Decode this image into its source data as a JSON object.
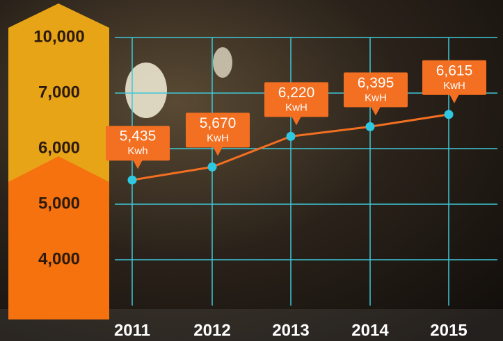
{
  "chart_data": {
    "type": "line",
    "categories": [
      "2011",
      "2012",
      "2013",
      "2014",
      "2015"
    ],
    "values": [
      5435,
      5670,
      6220,
      6395,
      6615
    ],
    "value_labels": [
      "5,435",
      "5,670",
      "6,220",
      "6,395",
      "6,615"
    ],
    "unit_labels": [
      "Kwh",
      "KwH",
      "KwH",
      "KwH",
      "KwH"
    ],
    "color": "#f36f21",
    "point_color": "#2ec8e0",
    "label_color": "#f36f21",
    "ylim": [
      4000,
      10000
    ],
    "yticks": [
      {
        "value": 4000,
        "label": "4,000"
      },
      {
        "value": 5000,
        "label": "5,000"
      },
      {
        "value": 6000,
        "label": "6,000"
      },
      {
        "value": 7000,
        "label": "7,000"
      },
      {
        "value": 10000,
        "label": "10,000"
      }
    ],
    "grid": true,
    "grid_color": "#3fc8d8"
  }
}
